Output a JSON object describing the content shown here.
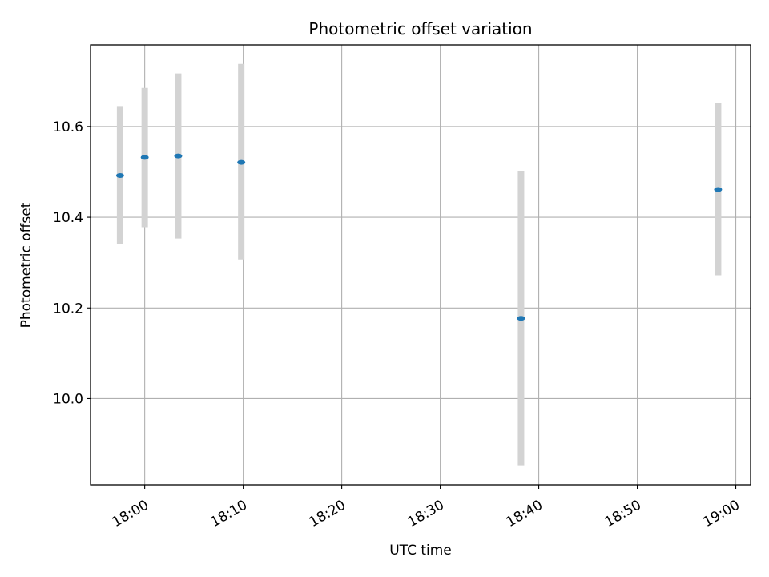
{
  "chart_data": {
    "type": "scatter",
    "title": "Photometric offset variation",
    "xlabel": "UTC time",
    "ylabel": "Photometric offset",
    "x_unit": "time of day (HH:MM)",
    "xlim": [
      "17:54.5",
      "19:01.5"
    ],
    "ylim": [
      9.81,
      10.78
    ],
    "x_ticks": [
      "18:00",
      "18:10",
      "18:20",
      "18:30",
      "18:40",
      "18:50",
      "19:00"
    ],
    "y_ticks": [
      10.0,
      10.2,
      10.4,
      10.6
    ],
    "y_tick_labels": [
      "10.0",
      "10.2",
      "10.4",
      "10.6"
    ],
    "grid": true,
    "point_color": "#1f77b4",
    "errorbar_color": "#d3d3d3",
    "series": [
      {
        "points": [
          {
            "x": "17:57.5",
            "y": 10.492,
            "err_low": 10.34,
            "err_high": 10.645
          },
          {
            "x": "17:60.0",
            "y": 10.532,
            "err_low": 10.378,
            "err_high": 10.685
          },
          {
            "x": "18:03.4",
            "y": 10.535,
            "err_low": 10.353,
            "err_high": 10.717
          },
          {
            "x": "18:09.8",
            "y": 10.521,
            "err_low": 10.307,
            "err_high": 10.738
          },
          {
            "x": "18:38.2",
            "y": 10.177,
            "err_low": 9.853,
            "err_high": 10.502
          },
          {
            "x": "18:58.2",
            "y": 10.461,
            "err_low": 10.272,
            "err_high": 10.651
          }
        ]
      }
    ]
  }
}
